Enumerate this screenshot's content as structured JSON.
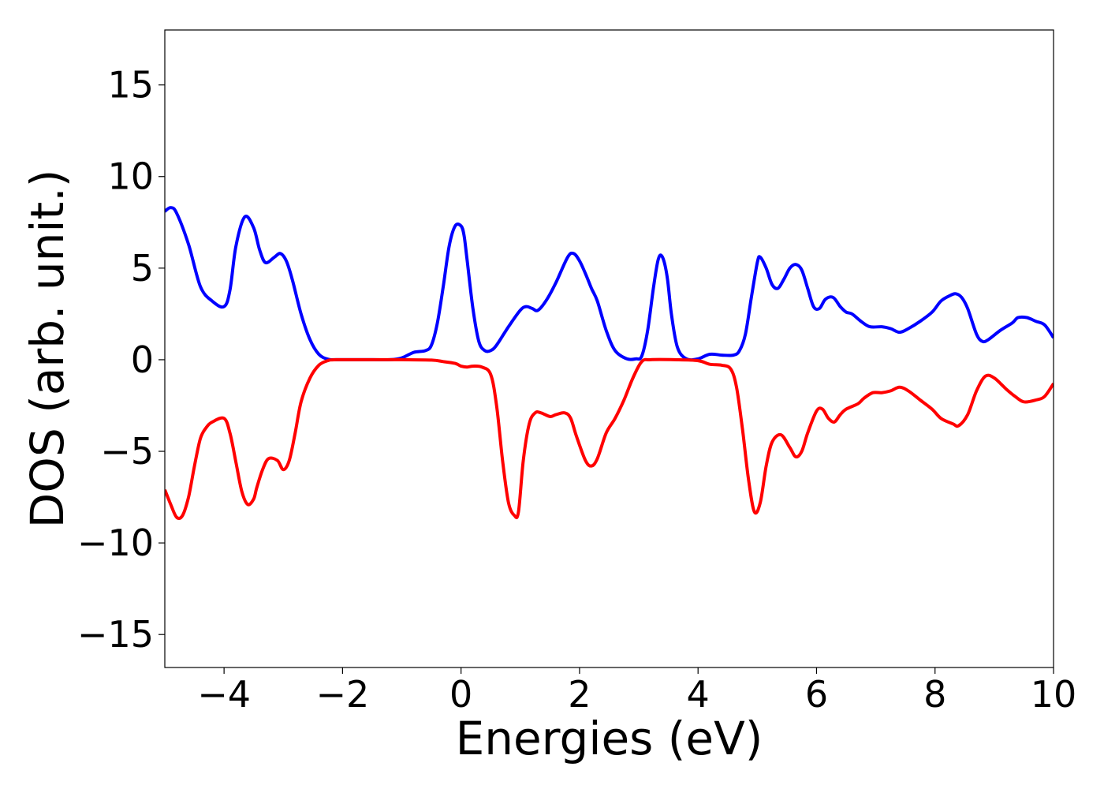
{
  "chart_data": {
    "type": "line",
    "title": "",
    "xlabel": "Energies (eV)",
    "ylabel": "DOS (arb. unit.)",
    "xlim": [
      -5,
      10
    ],
    "ylim": [
      -16.8,
      18
    ],
    "xticks": [
      -4,
      -2,
      0,
      2,
      4,
      6,
      8,
      10
    ],
    "xtick_labels": [
      "−4",
      "−2",
      "0",
      "2",
      "4",
      "6",
      "8",
      "10"
    ],
    "yticks": [
      -15,
      -10,
      -5,
      0,
      5,
      10,
      15
    ],
    "ytick_labels": [
      "−15",
      "−10",
      "−5",
      "0",
      "5",
      "10",
      "15"
    ],
    "grid": false,
    "legend": "none",
    "series": [
      {
        "color": "#0000ff",
        "x": [
          -5.0,
          -4.9,
          -4.8,
          -4.6,
          -4.4,
          -4.2,
          -4.0,
          -3.9,
          -3.8,
          -3.65,
          -3.5,
          -3.4,
          -3.3,
          -3.15,
          -3.05,
          -2.95,
          -2.85,
          -2.7,
          -2.55,
          -2.4,
          -2.25,
          -2.1,
          -1.5,
          -1.2,
          -1.0,
          -0.8,
          -0.6,
          -0.5,
          -0.4,
          -0.3,
          -0.2,
          -0.1,
          0.0,
          0.05,
          0.1,
          0.2,
          0.3,
          0.4,
          0.5,
          0.6,
          0.8,
          1.0,
          1.1,
          1.2,
          1.3,
          1.45,
          1.6,
          1.8,
          1.9,
          2.0,
          2.1,
          2.2,
          2.3,
          2.45,
          2.6,
          2.8,
          2.95,
          3.05,
          3.15,
          3.25,
          3.33,
          3.4,
          3.48,
          3.55,
          3.65,
          3.8,
          4.0,
          4.2,
          4.4,
          4.6,
          4.7,
          4.8,
          4.9,
          5.0,
          5.05,
          5.15,
          5.25,
          5.35,
          5.45,
          5.55,
          5.65,
          5.75,
          5.85,
          5.95,
          6.05,
          6.15,
          6.28,
          6.4,
          6.5,
          6.6,
          6.75,
          6.9,
          7.1,
          7.25,
          7.4,
          7.55,
          7.75,
          7.95,
          8.1,
          8.25,
          8.35,
          8.45,
          8.55,
          8.7,
          8.8,
          8.9,
          9.1,
          9.3,
          9.4,
          9.55,
          9.7,
          9.85,
          10.0
        ],
        "y": [
          8.1,
          8.3,
          8.0,
          6.3,
          4.0,
          3.2,
          2.9,
          3.8,
          6.2,
          7.8,
          7.2,
          6.0,
          5.3,
          5.6,
          5.8,
          5.4,
          4.4,
          2.5,
          1.1,
          0.3,
          0.03,
          0.0,
          0.0,
          0.0,
          0.1,
          0.4,
          0.5,
          0.8,
          2.0,
          4.0,
          6.2,
          7.3,
          7.3,
          6.8,
          5.5,
          2.8,
          1.0,
          0.5,
          0.5,
          0.8,
          1.8,
          2.7,
          2.9,
          2.8,
          2.7,
          3.3,
          4.2,
          5.6,
          5.8,
          5.4,
          4.7,
          3.9,
          3.2,
          1.6,
          0.5,
          0.05,
          0.05,
          0.2,
          1.6,
          4.0,
          5.5,
          5.6,
          4.5,
          2.5,
          0.7,
          0.05,
          0.05,
          0.3,
          0.25,
          0.25,
          0.5,
          1.4,
          3.4,
          5.3,
          5.6,
          5.0,
          4.1,
          3.9,
          4.4,
          5.0,
          5.2,
          4.9,
          3.9,
          2.9,
          2.8,
          3.3,
          3.4,
          2.9,
          2.6,
          2.5,
          2.1,
          1.8,
          1.8,
          1.7,
          1.5,
          1.7,
          2.1,
          2.6,
          3.2,
          3.5,
          3.6,
          3.4,
          2.8,
          1.4,
          1.0,
          1.1,
          1.6,
          2.0,
          2.3,
          2.3,
          2.1,
          1.9,
          1.2
        ]
      },
      {
        "color": "#ff0000",
        "x": [
          -5.0,
          -4.9,
          -4.8,
          -4.7,
          -4.6,
          -4.5,
          -4.4,
          -4.3,
          -4.2,
          -4.0,
          -3.9,
          -3.8,
          -3.7,
          -3.6,
          -3.5,
          -3.45,
          -3.35,
          -3.25,
          -3.1,
          -3.0,
          -2.9,
          -2.8,
          -2.7,
          -2.55,
          -2.4,
          -2.25,
          -2.1,
          -1.5,
          -1.0,
          -0.5,
          -0.3,
          -0.1,
          0.0,
          0.1,
          0.2,
          0.35,
          0.5,
          0.6,
          0.7,
          0.8,
          0.9,
          0.97,
          1.05,
          1.15,
          1.25,
          1.35,
          1.5,
          1.6,
          1.75,
          1.85,
          1.95,
          2.1,
          2.2,
          2.3,
          2.45,
          2.6,
          2.75,
          2.9,
          3.05,
          3.2,
          3.6,
          4.0,
          4.2,
          4.4,
          4.55,
          4.65,
          4.75,
          4.85,
          4.95,
          5.05,
          5.15,
          5.25,
          5.4,
          5.55,
          5.65,
          5.75,
          5.85,
          6.0,
          6.1,
          6.2,
          6.3,
          6.4,
          6.5,
          6.7,
          6.8,
          6.95,
          7.1,
          7.25,
          7.4,
          7.55,
          7.75,
          7.95,
          8.1,
          8.3,
          8.4,
          8.55,
          8.7,
          8.85,
          9.0,
          9.2,
          9.35,
          9.5,
          9.7,
          9.85,
          10.0
        ],
        "y": [
          -7.1,
          -7.9,
          -8.6,
          -8.5,
          -7.5,
          -5.8,
          -4.3,
          -3.7,
          -3.4,
          -3.2,
          -4.0,
          -5.6,
          -7.2,
          -7.9,
          -7.6,
          -7.0,
          -6.0,
          -5.4,
          -5.5,
          -6.0,
          -5.5,
          -4.0,
          -2.3,
          -1.0,
          -0.3,
          -0.05,
          0.0,
          0.0,
          0.0,
          -0.02,
          -0.1,
          -0.2,
          -0.35,
          -0.4,
          -0.35,
          -0.4,
          -0.8,
          -2.5,
          -5.5,
          -7.8,
          -8.5,
          -8.3,
          -5.5,
          -3.5,
          -2.9,
          -2.9,
          -3.1,
          -3.0,
          -2.9,
          -3.2,
          -4.2,
          -5.5,
          -5.8,
          -5.4,
          -4.0,
          -3.2,
          -2.2,
          -1.0,
          -0.1,
          0.0,
          0.0,
          -0.05,
          -0.25,
          -0.3,
          -0.5,
          -1.5,
          -3.8,
          -6.5,
          -8.3,
          -7.8,
          -5.8,
          -4.5,
          -4.1,
          -4.8,
          -5.3,
          -5.0,
          -4.0,
          -2.8,
          -2.7,
          -3.2,
          -3.4,
          -3.0,
          -2.7,
          -2.4,
          -2.1,
          -1.8,
          -1.8,
          -1.7,
          -1.5,
          -1.7,
          -2.2,
          -2.7,
          -3.2,
          -3.5,
          -3.6,
          -3.0,
          -1.7,
          -0.9,
          -1.0,
          -1.6,
          -2.0,
          -2.3,
          -2.2,
          -2.0,
          -1.3
        ]
      }
    ]
  }
}
